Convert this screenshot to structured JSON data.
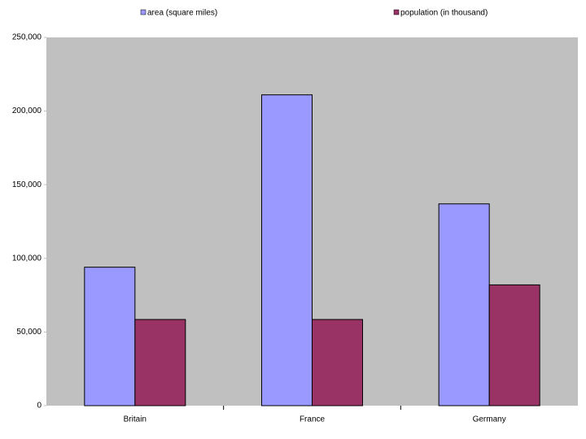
{
  "chart_data": {
    "type": "bar",
    "categories": [
      "Britain",
      "France",
      "Germany"
    ],
    "series": [
      {
        "name": "area (square miles)",
        "color": "#9999ff",
        "values": [
          94000,
          211000,
          137000
        ]
      },
      {
        "name": "population (in thousand)",
        "color": "#993366",
        "values": [
          58500,
          58500,
          82000
        ]
      }
    ],
    "ylim": [
      0,
      250000
    ],
    "yticks": [
      0,
      {
        "value": 50000,
        "label": "50,000"
      },
      {
        "value": 100000,
        "label": "100,000"
      },
      {
        "value": 150000,
        "label": "150,000"
      },
      {
        "value": 200000,
        "label": "200,000"
      },
      {
        "value": 250000,
        "label": "250,000"
      }
    ],
    "grid": false,
    "legend": "top",
    "plot_background": "#c0c0c0"
  }
}
